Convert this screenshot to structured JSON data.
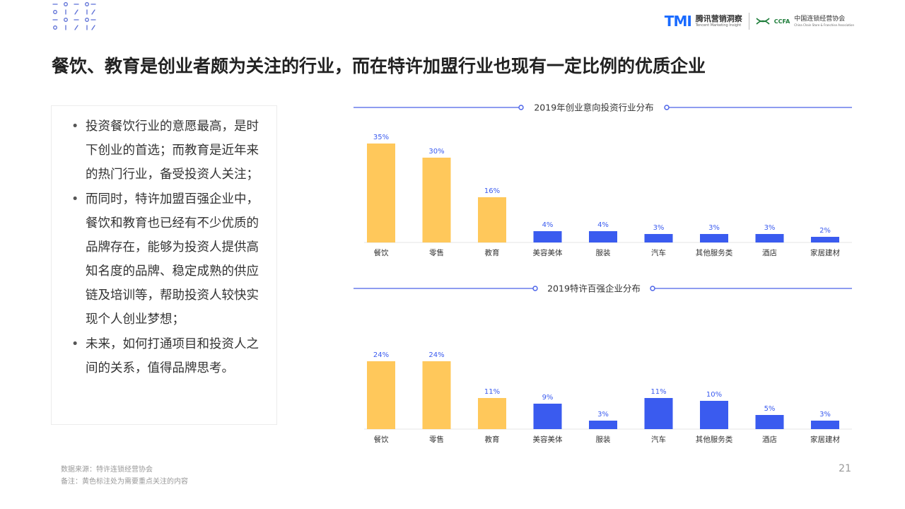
{
  "header": {
    "logo_tmi": "TMI",
    "logo_tmi_cn": "腾讯营销洞察",
    "logo_tmi_en": "Tencent Marketing Insight",
    "logo_ccfa_mark": "CCFA",
    "logo_ccfa_cn": "中国连锁经营协会",
    "logo_ccfa_en": "China Chain Store & Franchise Association"
  },
  "title": "餐饮、教育是创业者颇为关注的行业，而在特许加盟行业也现有一定比例的优质企业",
  "bullets": [
    "投资餐饮行业的意愿最高，是时下创业的首选；而教育是近年来的热门行业，备受投资人关注；",
    "而同时，特许加盟百强企业中，餐饮和教育也已经有不少优质的品牌存在，能够为投资人提供高知名度的品牌、稳定成熟的供应链及培训等，帮助投资人较快实现个人创业梦想；",
    "未来，如何打通项目和投资人之间的关系，值得品牌思考。"
  ],
  "colors": {
    "highlight": "#FFC85B",
    "normal": "#3A5BEF",
    "line": "#4A62E8"
  },
  "chart_data": [
    {
      "type": "bar",
      "title": "2019年创业意向投资行业分布",
      "categories": [
        "餐饮",
        "零售",
        "教育",
        "美容美体",
        "服装",
        "汽车",
        "其他服务类",
        "酒店",
        "家居建材"
      ],
      "values": [
        35,
        30,
        16,
        4,
        4,
        3,
        3,
        3,
        2
      ],
      "labels": [
        "35%",
        "30%",
        "16%",
        "4%",
        "4%",
        "3%",
        "3%",
        "3%",
        "2%"
      ],
      "highlighted": [
        true,
        true,
        true,
        false,
        false,
        false,
        false,
        false,
        false
      ],
      "unit": "%",
      "ylim": [
        0,
        35
      ],
      "grid": false
    },
    {
      "type": "bar",
      "title": "2019特许百强企业分布",
      "categories": [
        "餐饮",
        "零售",
        "教育",
        "美容美体",
        "服装",
        "汽车",
        "其他服务类",
        "酒店",
        "家居建材"
      ],
      "values": [
        24,
        24,
        11,
        9,
        3,
        11,
        10,
        5,
        3
      ],
      "labels": [
        "24%",
        "24%",
        "11%",
        "9%",
        "3%",
        "11%",
        "10%",
        "5%",
        "3%"
      ],
      "highlighted": [
        true,
        true,
        true,
        false,
        false,
        false,
        false,
        false,
        false
      ],
      "unit": "%",
      "ylim": [
        0,
        24
      ],
      "grid": false
    }
  ],
  "footer": {
    "source": "数据来源：特许连锁经营协会",
    "note": "备注：黄色标注处为需要重点关注的内容",
    "page": "21"
  }
}
